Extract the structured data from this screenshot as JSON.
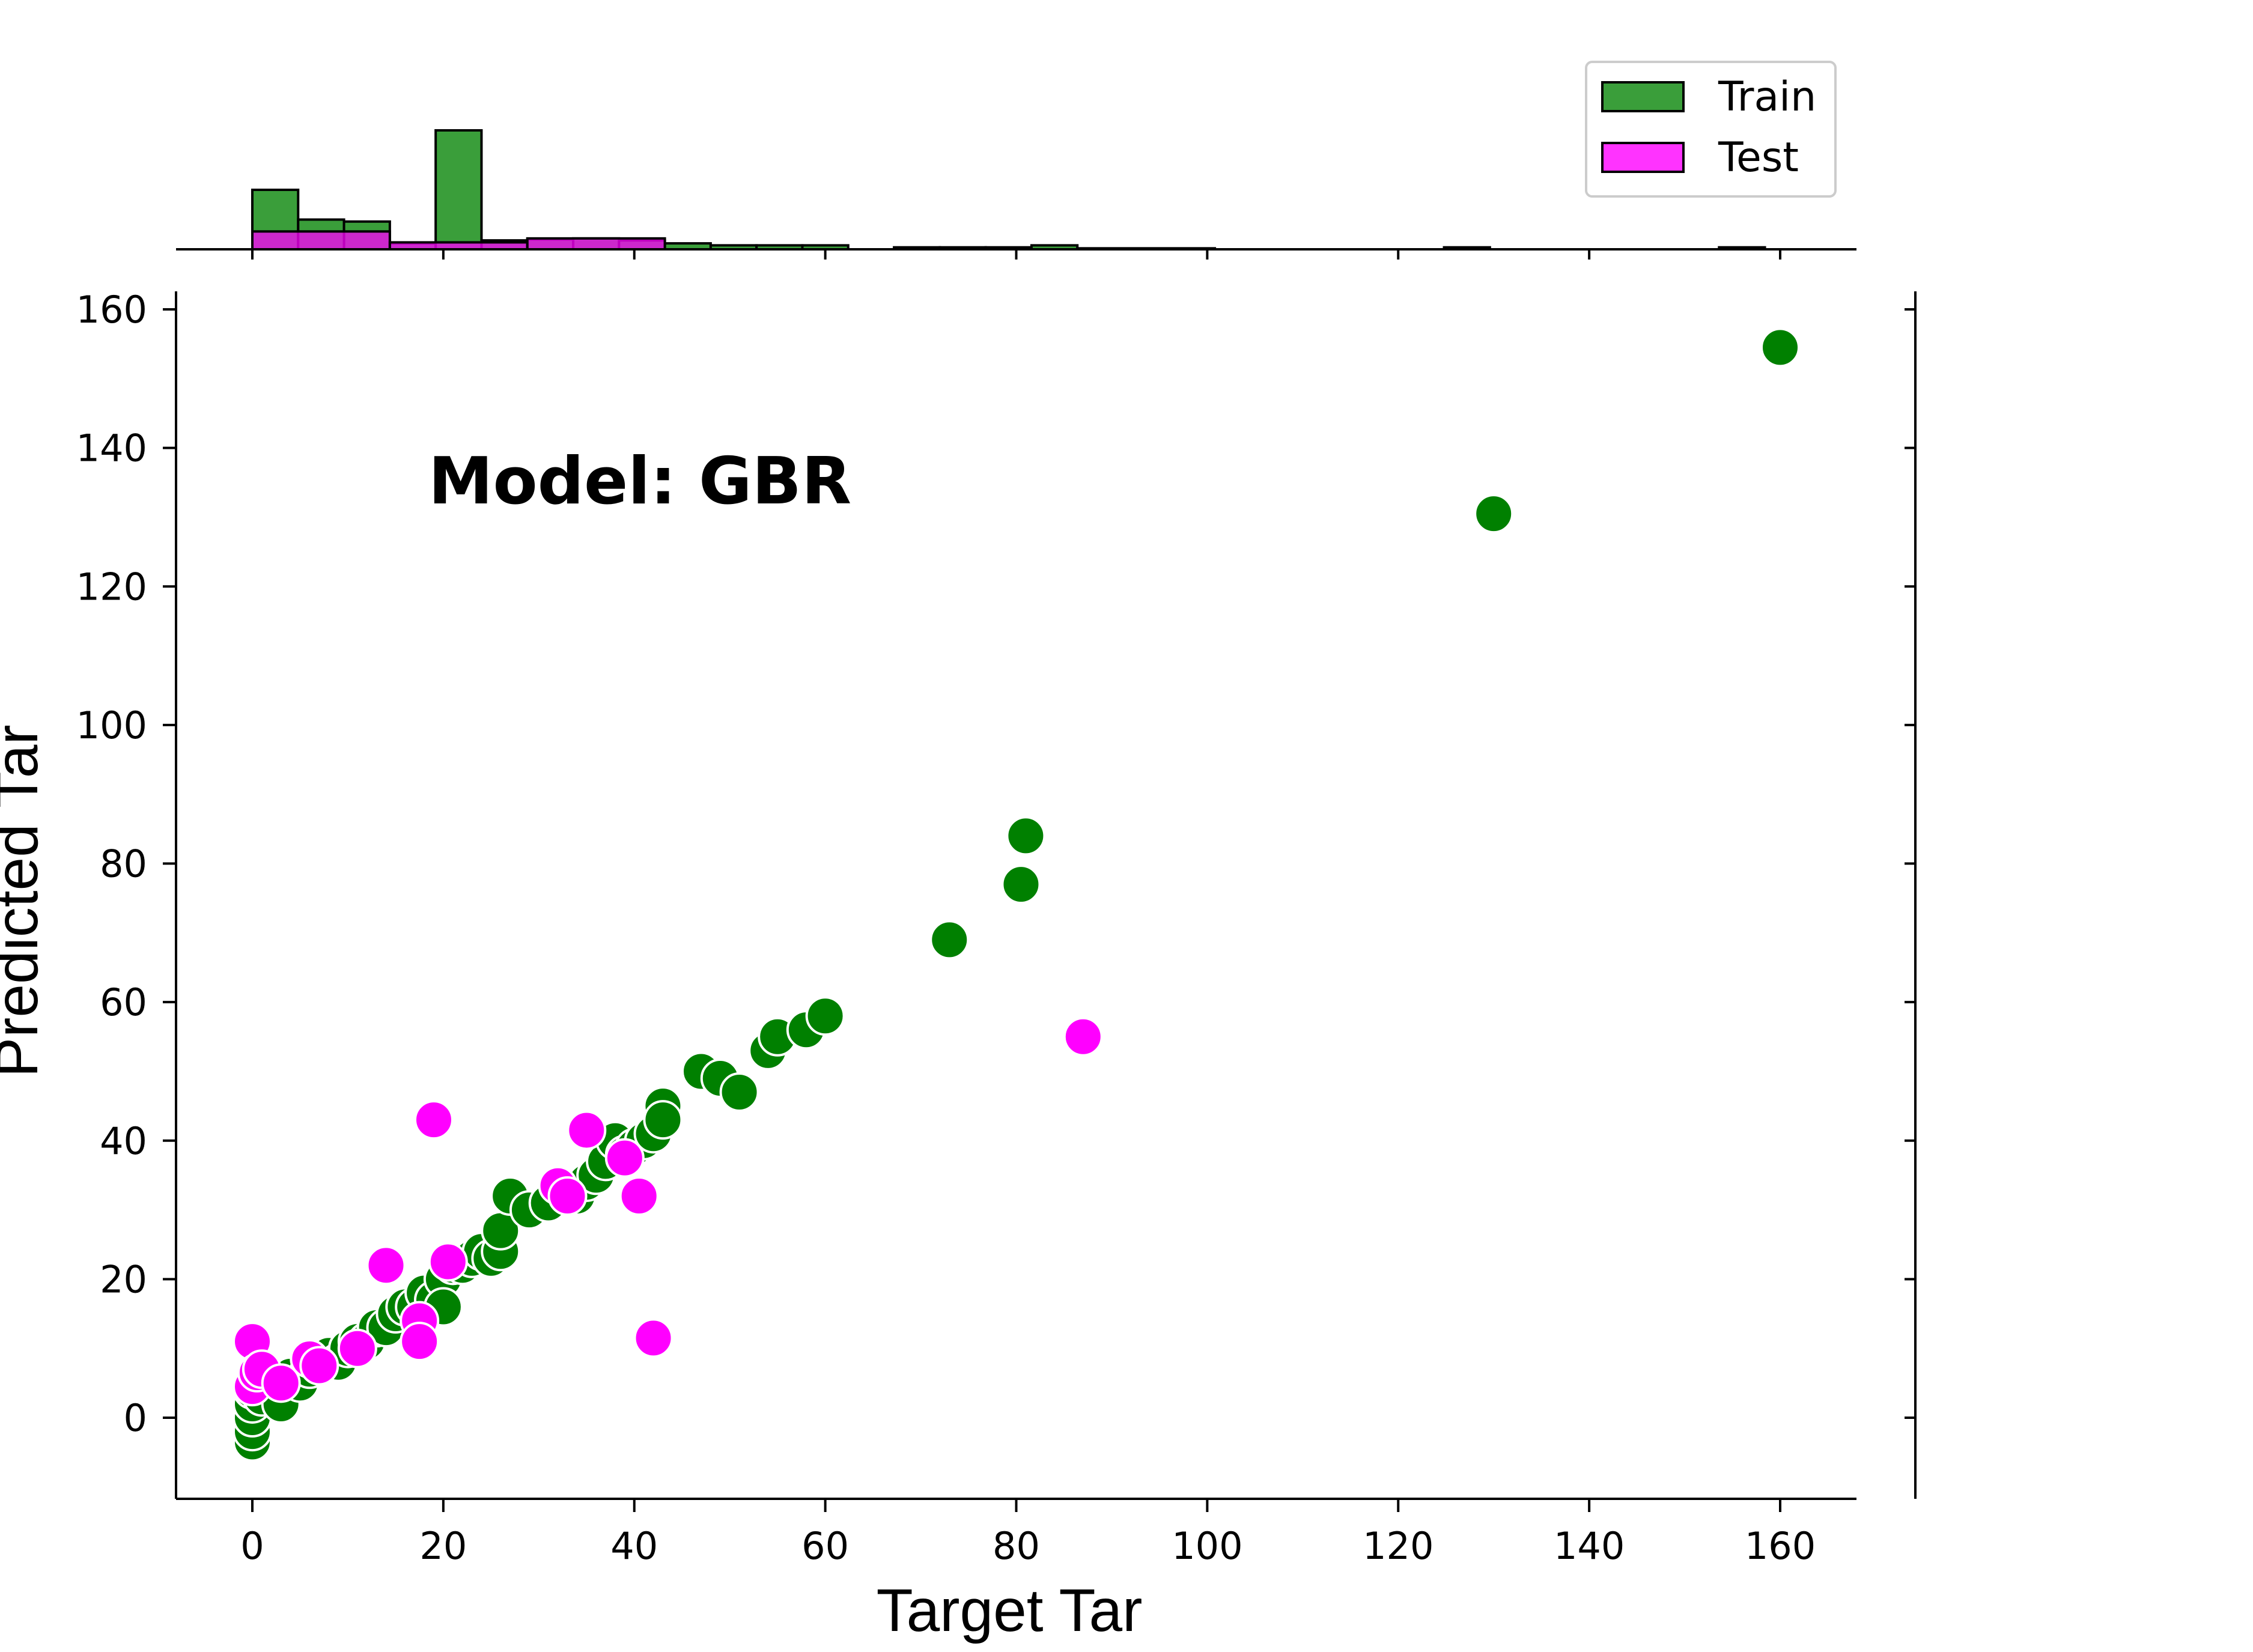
{
  "chart_data": {
    "type": "scatter",
    "annotation": "Model: GBR",
    "xlabel": "Target Tar",
    "ylabel": "Predicted Tar",
    "xlim": [
      -8,
      168
    ],
    "ylim": [
      -12,
      162
    ],
    "x_ticks": [
      0,
      20,
      40,
      60,
      80,
      100,
      120,
      140,
      160
    ],
    "y_ticks": [
      0,
      20,
      40,
      60,
      80,
      100,
      120,
      140,
      160
    ],
    "legend": {
      "position": "top-right",
      "entries": [
        {
          "label": "Train",
          "color": "#1a8a1a"
        },
        {
          "label": "Test",
          "color": "#ff00ff"
        }
      ]
    },
    "series": [
      {
        "name": "Train",
        "color": "#008000",
        "points": [
          [
            0,
            -3.5
          ],
          [
            0,
            -2
          ],
          [
            0,
            0
          ],
          [
            0,
            2
          ],
          [
            0,
            4
          ],
          [
            1,
            3
          ],
          [
            2,
            5
          ],
          [
            3,
            2
          ],
          [
            4,
            6
          ],
          [
            5,
            5
          ],
          [
            6,
            7
          ],
          [
            7,
            8
          ],
          [
            8,
            9
          ],
          [
            9,
            8
          ],
          [
            10,
            10
          ],
          [
            11,
            11
          ],
          [
            12,
            11
          ],
          [
            13,
            13
          ],
          [
            14,
            13
          ],
          [
            15,
            15
          ],
          [
            16,
            16
          ],
          [
            17,
            16
          ],
          [
            18,
            18
          ],
          [
            19,
            17
          ],
          [
            20,
            20
          ],
          [
            20,
            16
          ],
          [
            21,
            22
          ],
          [
            22,
            22
          ],
          [
            23,
            23
          ],
          [
            24,
            24
          ],
          [
            25,
            23
          ],
          [
            26,
            24
          ],
          [
            26,
            27
          ],
          [
            27,
            32
          ],
          [
            29,
            30
          ],
          [
            31,
            31
          ],
          [
            33,
            33
          ],
          [
            34,
            32
          ],
          [
            35,
            34
          ],
          [
            36,
            35
          ],
          [
            37,
            37
          ],
          [
            38,
            40
          ],
          [
            39,
            38
          ],
          [
            40,
            39
          ],
          [
            41,
            40
          ],
          [
            42,
            41
          ],
          [
            43,
            45
          ],
          [
            43,
            43
          ],
          [
            47,
            50
          ],
          [
            49,
            49
          ],
          [
            51,
            47
          ],
          [
            54,
            53
          ],
          [
            55,
            55
          ],
          [
            58,
            56
          ],
          [
            60,
            58
          ],
          [
            73,
            69
          ],
          [
            80.5,
            77
          ],
          [
            81,
            84
          ],
          [
            130,
            130.5
          ],
          [
            160,
            154.5
          ]
        ]
      },
      {
        "name": "Test",
        "color": "#ff00ff",
        "points": [
          [
            0,
            11
          ],
          [
            0,
            4.5
          ],
          [
            0.5,
            6.5
          ],
          [
            1,
            7
          ],
          [
            3,
            5
          ],
          [
            6,
            8.5
          ],
          [
            7,
            7.5
          ],
          [
            11,
            10
          ],
          [
            14,
            22
          ],
          [
            17.5,
            14
          ],
          [
            17.5,
            11
          ],
          [
            19,
            43
          ],
          [
            20.5,
            22.5
          ],
          [
            32,
            33.5
          ],
          [
            33,
            32
          ],
          [
            35,
            41.5
          ],
          [
            39,
            37.5
          ],
          [
            40.5,
            32
          ],
          [
            42,
            11.5
          ],
          [
            87,
            55
          ]
        ]
      }
    ],
    "histogram": {
      "y_scale_max": 10,
      "bin_width_train": 4.8,
      "bin_width_test": 14.4,
      "train": [
        {
          "x0": 0,
          "count": 3.0
        },
        {
          "x0": 4.8,
          "count": 1.5
        },
        {
          "x0": 9.6,
          "count": 1.4
        },
        {
          "x0": 14.4,
          "count": 0.3
        },
        {
          "x0": 19.2,
          "count": 6.0
        },
        {
          "x0": 24.0,
          "count": 0.45
        },
        {
          "x0": 28.8,
          "count": 0.5
        },
        {
          "x0": 33.6,
          "count": 0.55
        },
        {
          "x0": 38.4,
          "count": 0.45
        },
        {
          "x0": 43.2,
          "count": 0.3
        },
        {
          "x0": 48.0,
          "count": 0.2
        },
        {
          "x0": 52.8,
          "count": 0.2
        },
        {
          "x0": 57.6,
          "count": 0.2
        },
        {
          "x0": 67.2,
          "count": 0.1
        },
        {
          "x0": 72.0,
          "count": 0.1
        },
        {
          "x0": 76.8,
          "count": 0.1
        },
        {
          "x0": 81.6,
          "count": 0.2
        },
        {
          "x0": 124.8,
          "count": 0.1
        },
        {
          "x0": 153.6,
          "count": 0.1
        }
      ],
      "test": [
        {
          "x0": 0,
          "count": 0.9
        },
        {
          "x0": 14.4,
          "count": 0.35
        },
        {
          "x0": 28.8,
          "count": 0.55
        },
        {
          "x0": 86.4,
          "count": 0.05
        }
      ]
    }
  }
}
